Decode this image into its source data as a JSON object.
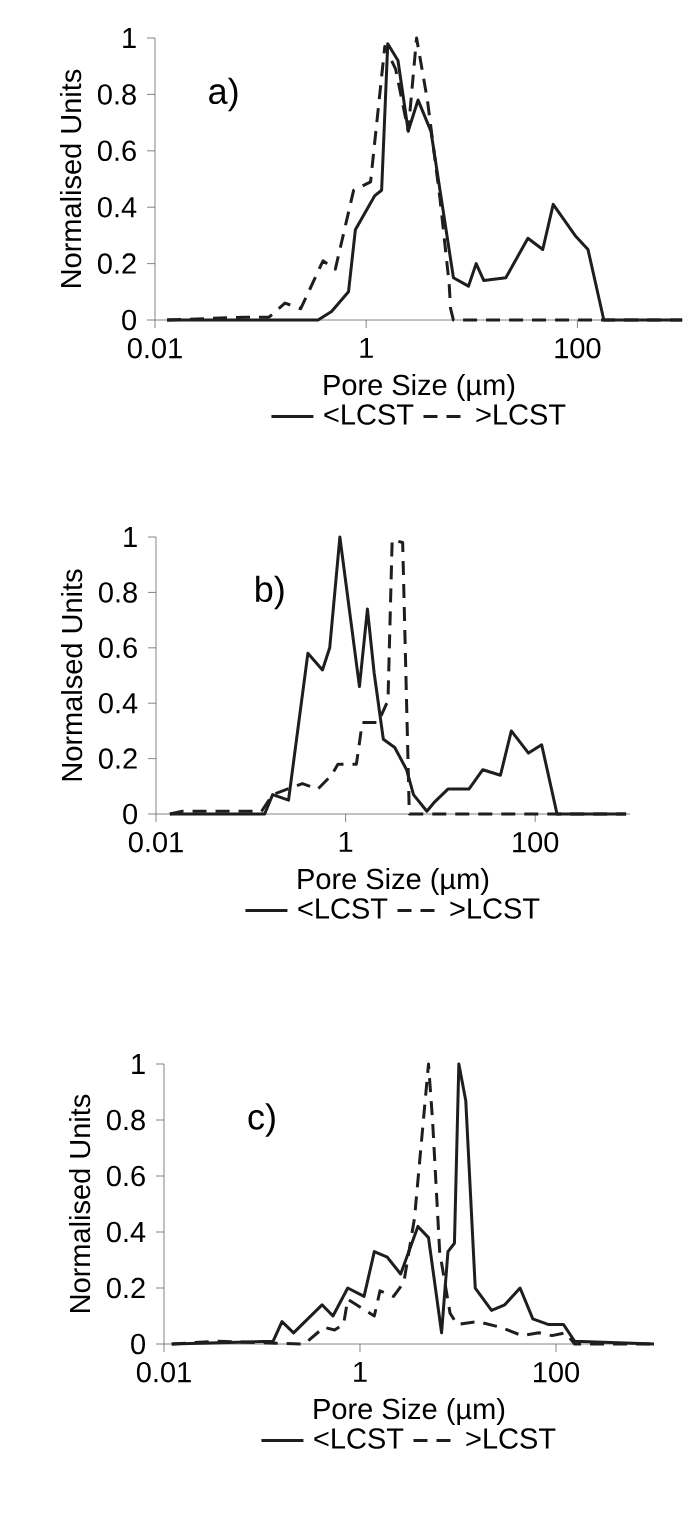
{
  "chart_data": [
    {
      "type": "line",
      "annotations": [
        "a)"
      ],
      "xlabel": "Pore Size (µm)",
      "ylabel": "Normalised Units",
      "log": "x",
      "xlim": [
        0.01,
        1000
      ],
      "xticks": [
        0.01,
        1,
        100
      ],
      "ylim": [
        0,
        1
      ],
      "yticks": [
        0,
        0.2,
        0.4,
        0.6,
        0.8,
        1
      ],
      "legend": "bottom",
      "series": [
        {
          "name": "<LCST",
          "color": "#1e1e1e",
          "line_style": "solid",
          "x": [
            0.013,
            0.35,
            0.47,
            0.68,
            0.79,
            1.2,
            1.4,
            1.6,
            2.0,
            2.5,
            3.1,
            4.1,
            6.7,
            9.3,
            11,
            13,
            21,
            34,
            47,
            59,
            95,
            126,
            178,
            980
          ],
          "values": [
            0,
            0,
            0.03,
            0.1,
            0.32,
            0.44,
            0.46,
            0.98,
            0.92,
            0.67,
            0.78,
            0.67,
            0.15,
            0.12,
            0.2,
            0.14,
            0.15,
            0.29,
            0.25,
            0.41,
            0.3,
            0.25,
            0,
            0
          ]
        },
        {
          "name": ">LCST",
          "color": "#1e1e1e",
          "line_style": "dashed",
          "x": [
            0.013,
            0.07,
            0.12,
            0.17,
            0.24,
            0.39,
            0.51,
            0.76,
            1.1,
            1.5,
            1.9,
            2.5,
            3.0,
            3.8,
            5.0,
            6.1,
            6.3,
            6.7,
            980
          ],
          "values": [
            0,
            0.01,
            0.01,
            0.06,
            0.04,
            0.21,
            0.18,
            0.46,
            0.49,
            0.97,
            0.89,
            0.67,
            1.0,
            0.78,
            0.43,
            0.13,
            0.04,
            0,
            0
          ]
        }
      ]
    },
    {
      "type": "line",
      "annotations": [
        "b)"
      ],
      "xlabel": "Pore Size (µm)",
      "ylabel": "Normalsed Units",
      "log": "x",
      "xlim": [
        0.01,
        1000
      ],
      "xticks": [
        0.01,
        1,
        100
      ],
      "ylim": [
        0,
        1
      ],
      "yticks": [
        0,
        0.2,
        0.4,
        0.6,
        0.8,
        1
      ],
      "legend": "bottom",
      "series": [
        {
          "name": "<LCST",
          "color": "#1e1e1e",
          "line_style": "solid",
          "x": [
            0.014,
            0.14,
            0.17,
            0.25,
            0.4,
            0.57,
            0.68,
            0.87,
            1.4,
            1.7,
            2.0,
            2.5,
            3.3,
            4.4,
            5.2,
            7.2,
            8.5,
            12,
            20,
            28,
            43,
            56,
            85,
            117,
            170,
            910
          ],
          "values": [
            0,
            0,
            0.07,
            0.05,
            0.58,
            0.52,
            0.6,
            1.0,
            0.46,
            0.74,
            0.51,
            0.27,
            0.24,
            0.16,
            0.07,
            0.01,
            0.04,
            0.09,
            0.09,
            0.16,
            0.14,
            0.3,
            0.22,
            0.25,
            0,
            0
          ]
        },
        {
          "name": ">LCST",
          "color": "#1e1e1e",
          "line_style": "dashed",
          "x": [
            0.014,
            0.019,
            0.13,
            0.17,
            0.35,
            0.51,
            0.71,
            0.83,
            1.3,
            1.5,
            2.2,
            2.8,
            3.1,
            4.0,
            4.7,
            910
          ],
          "values": [
            0,
            0.01,
            0.01,
            0.07,
            0.11,
            0.09,
            0.14,
            0.18,
            0.18,
            0.33,
            0.33,
            0.41,
            0.99,
            0.98,
            0,
            0
          ]
        }
      ]
    },
    {
      "type": "line",
      "annotations": [
        "c)"
      ],
      "xlabel": "Pore Size (µm)",
      "ylabel": "Normalised Units",
      "log": "x",
      "xlim": [
        0.01,
        1000
      ],
      "xticks": [
        0.01,
        1,
        100
      ],
      "ylim": [
        0,
        1
      ],
      "yticks": [
        0,
        0.2,
        0.4,
        0.6,
        0.8,
        1
      ],
      "legend": "bottom",
      "series": [
        {
          "name": "<LCST",
          "color": "#1e1e1e",
          "line_style": "solid",
          "x": [
            0.012,
            0.13,
            0.16,
            0.21,
            0.41,
            0.53,
            0.75,
            1.1,
            1.4,
            1.9,
            2.6,
            3.9,
            5.0,
            6.8,
            7.9,
            9.2,
            10.2,
            12,
            15,
            22,
            30,
            43,
            58,
            83,
            119,
            155,
            1000
          ],
          "values": [
            0,
            0.01,
            0.08,
            0.04,
            0.14,
            0.1,
            0.2,
            0.17,
            0.33,
            0.31,
            0.25,
            0.42,
            0.38,
            0.04,
            0.33,
            0.36,
            1.0,
            0.87,
            0.2,
            0.12,
            0.14,
            0.2,
            0.09,
            0.07,
            0.07,
            0.01,
            0
          ]
        },
        {
          "name": ">LCST",
          "color": "#1e1e1e",
          "line_style": "dashed",
          "x": [
            0.012,
            0.035,
            0.27,
            0.43,
            0.55,
            0.68,
            0.75,
            1.4,
            1.6,
            2.2,
            2.8,
            3.6,
            5.0,
            5.5,
            6.5,
            8.3,
            9.8,
            16,
            27,
            45,
            67,
            91,
            125,
            155,
            1000
          ],
          "values": [
            0,
            0.01,
            0,
            0.06,
            0.05,
            0.07,
            0.16,
            0.1,
            0.19,
            0.17,
            0.22,
            0.45,
            1.0,
            0.8,
            0.33,
            0.11,
            0.07,
            0.08,
            0.06,
            0.03,
            0.04,
            0.03,
            0.04,
            0,
            0
          ]
        }
      ]
    }
  ]
}
